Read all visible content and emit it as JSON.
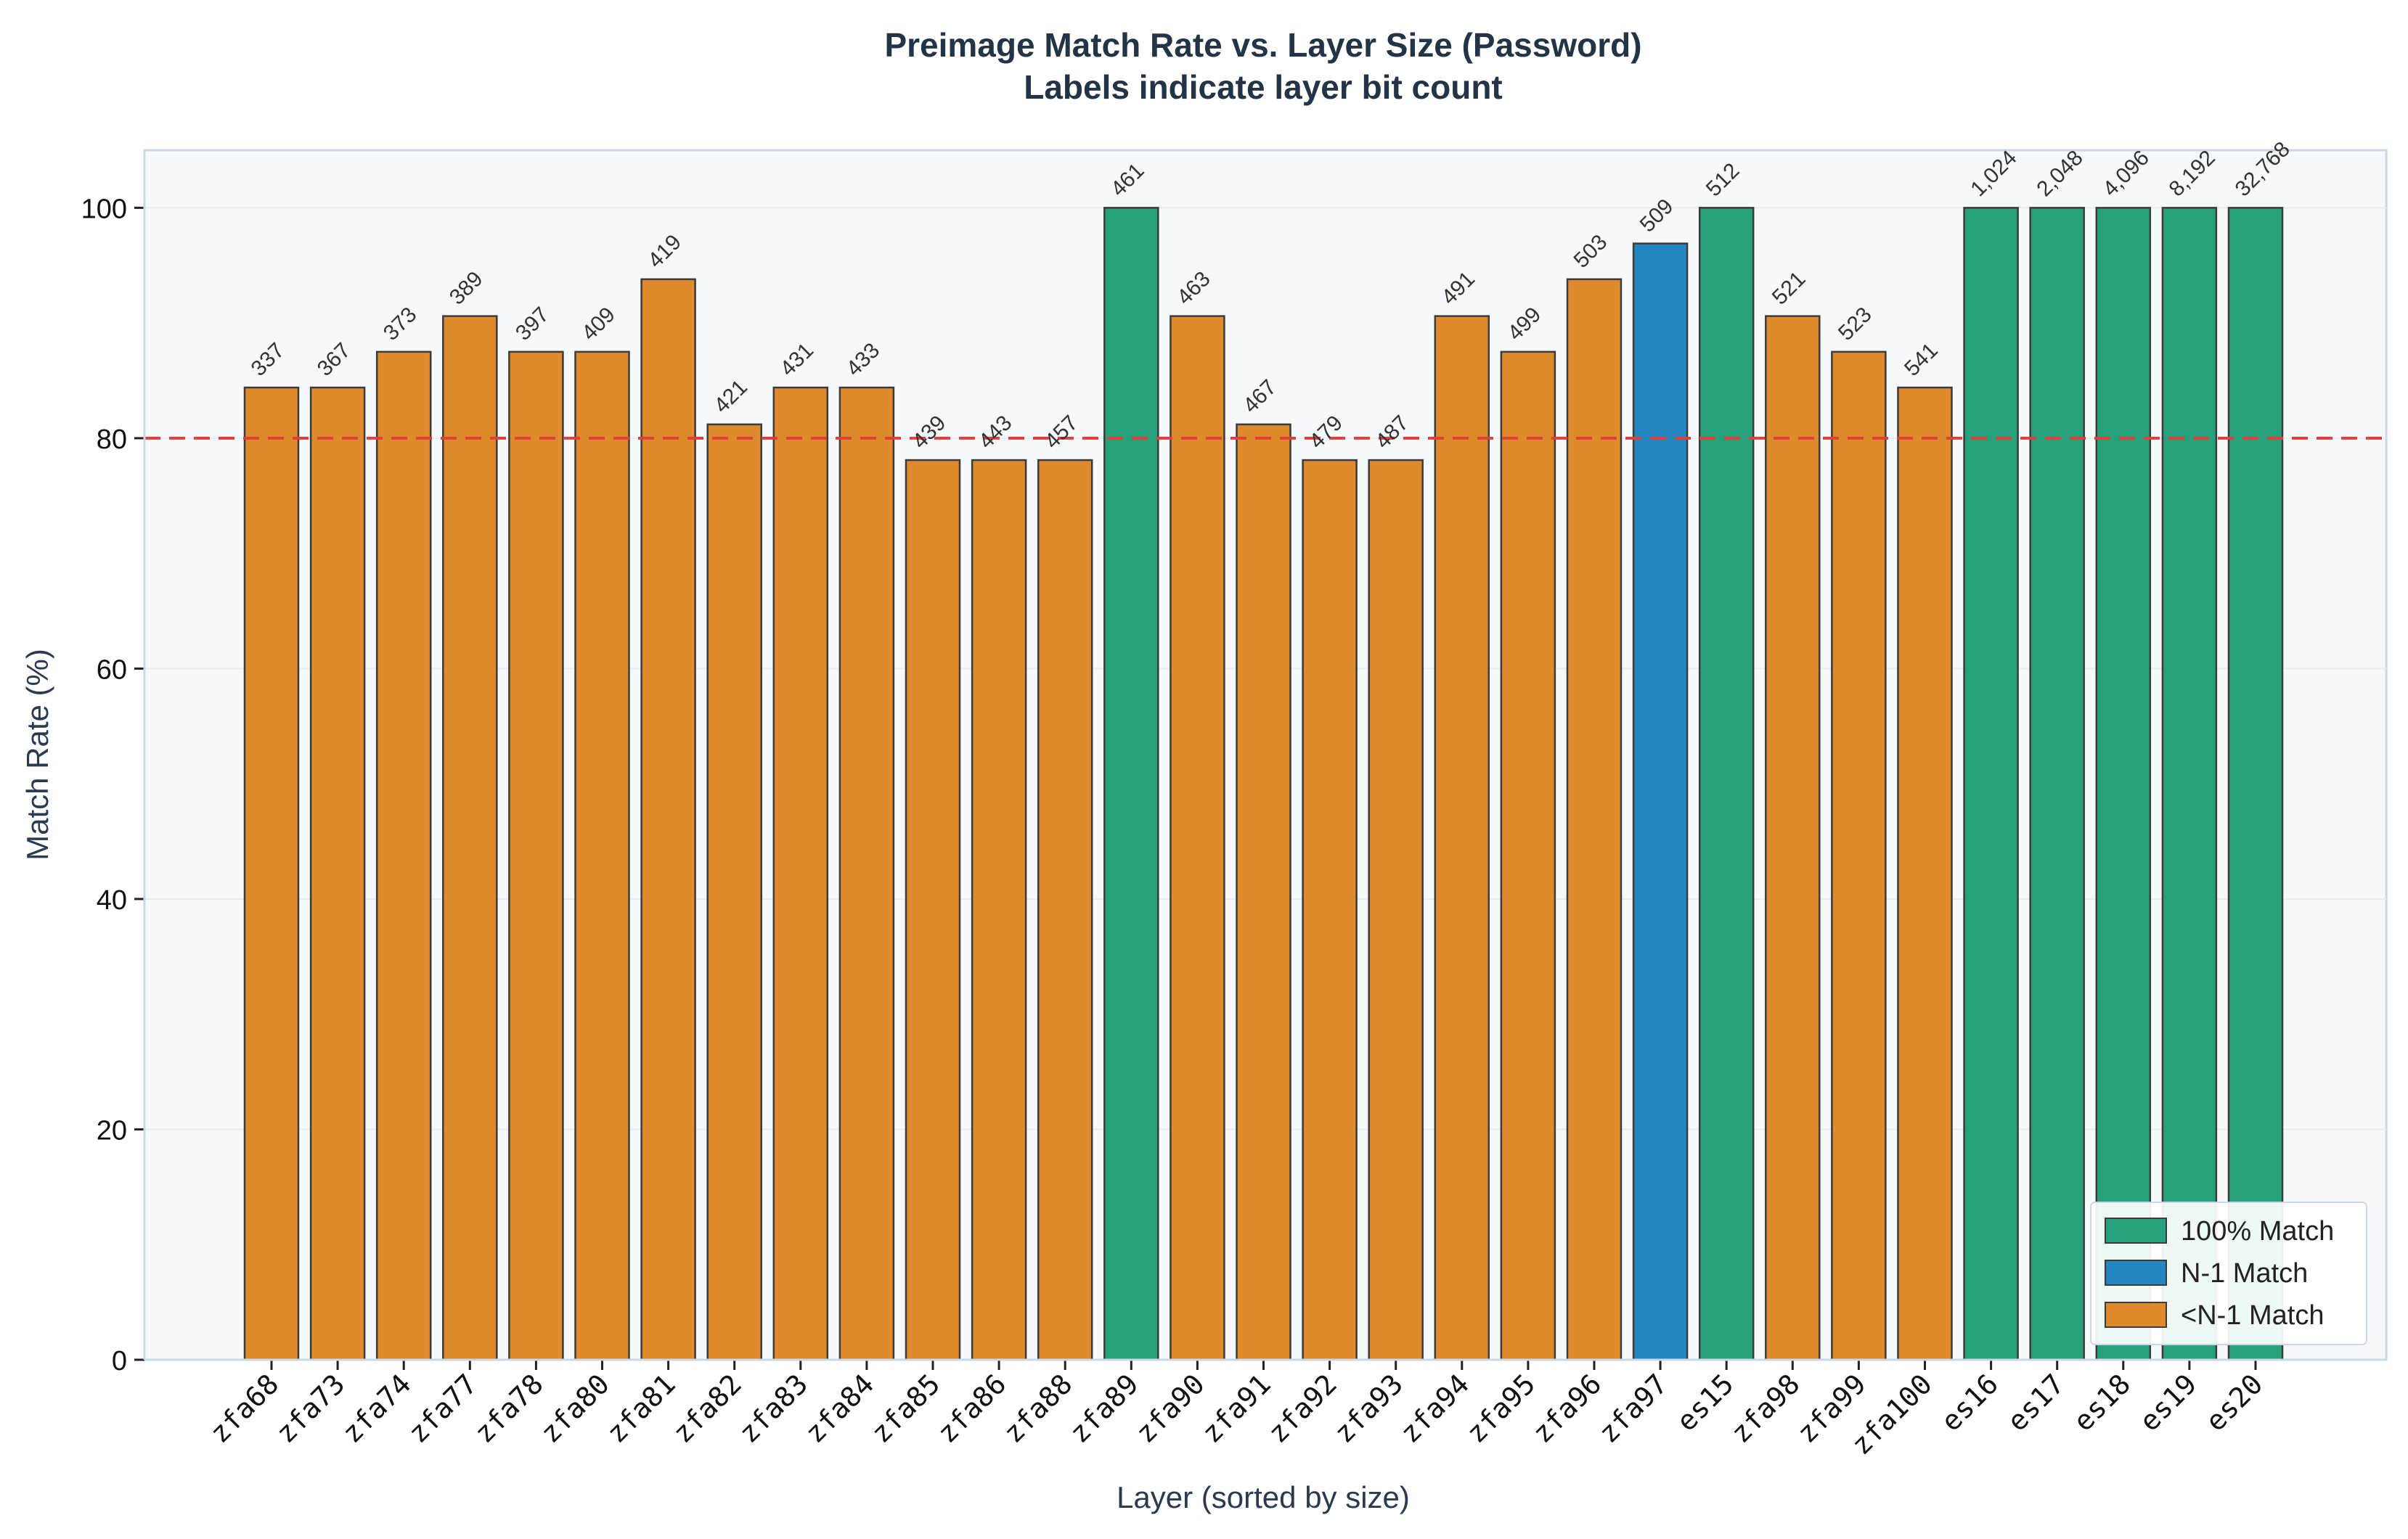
{
  "chart_data": {
    "type": "bar",
    "title": "Preimage Match Rate vs. Layer Size (Password)",
    "subtitle": "Labels indicate layer bit count",
    "xlabel": "Layer (sorted by size)",
    "ylabel": "Match Rate (%)",
    "ylim": [
      0,
      105
    ],
    "yticks": [
      0,
      20,
      40,
      60,
      80,
      100
    ],
    "grid": true,
    "threshold": {
      "value": 80,
      "style": "dashed",
      "color": "#e0403a"
    },
    "categories": [
      "zfa68",
      "zfa73",
      "zfa74",
      "zfa77",
      "zfa78",
      "zfa80",
      "zfa81",
      "zfa82",
      "zfa83",
      "zfa84",
      "zfa85",
      "zfa86",
      "zfa88",
      "zfa89",
      "zfa90",
      "zfa91",
      "zfa92",
      "zfa93",
      "zfa94",
      "zfa95",
      "zfa96",
      "zfa97",
      "es15",
      "zfa98",
      "zfa99",
      "zfa100",
      "es16",
      "es17",
      "es18",
      "es19",
      "es20"
    ],
    "values": [
      84.4,
      84.4,
      87.5,
      90.6,
      87.5,
      87.5,
      93.8,
      81.2,
      84.4,
      84.4,
      78.1,
      78.1,
      78.1,
      100,
      90.6,
      81.2,
      78.1,
      78.1,
      90.6,
      87.5,
      93.8,
      96.9,
      100,
      90.6,
      87.5,
      84.4,
      100,
      100,
      100,
      100,
      100
    ],
    "bit_counts": [
      "337",
      "367",
      "373",
      "389",
      "397",
      "409",
      "419",
      "421",
      "431",
      "433",
      "439",
      "443",
      "457",
      "461",
      "463",
      "467",
      "479",
      "487",
      "491",
      "499",
      "503",
      "509",
      "512",
      "521",
      "523",
      "541",
      "1,024",
      "2,048",
      "4,096",
      "8,192",
      "32,768"
    ],
    "match_class": [
      "partial",
      "partial",
      "partial",
      "partial",
      "partial",
      "partial",
      "partial",
      "partial",
      "partial",
      "partial",
      "partial",
      "partial",
      "partial",
      "full",
      "partial",
      "partial",
      "partial",
      "partial",
      "partial",
      "partial",
      "partial",
      "n1",
      "full",
      "partial",
      "partial",
      "partial",
      "full",
      "full",
      "full",
      "full",
      "full"
    ],
    "legend": {
      "position": "bottom-right",
      "items": [
        {
          "key": "full",
          "label": "100% Match",
          "color": "#27a17c"
        },
        {
          "key": "n1",
          "label": "N-1 Match",
          "color": "#2686c2"
        },
        {
          "key": "partial",
          "label": "<N-1 Match",
          "color": "#de8a2d"
        }
      ]
    }
  }
}
